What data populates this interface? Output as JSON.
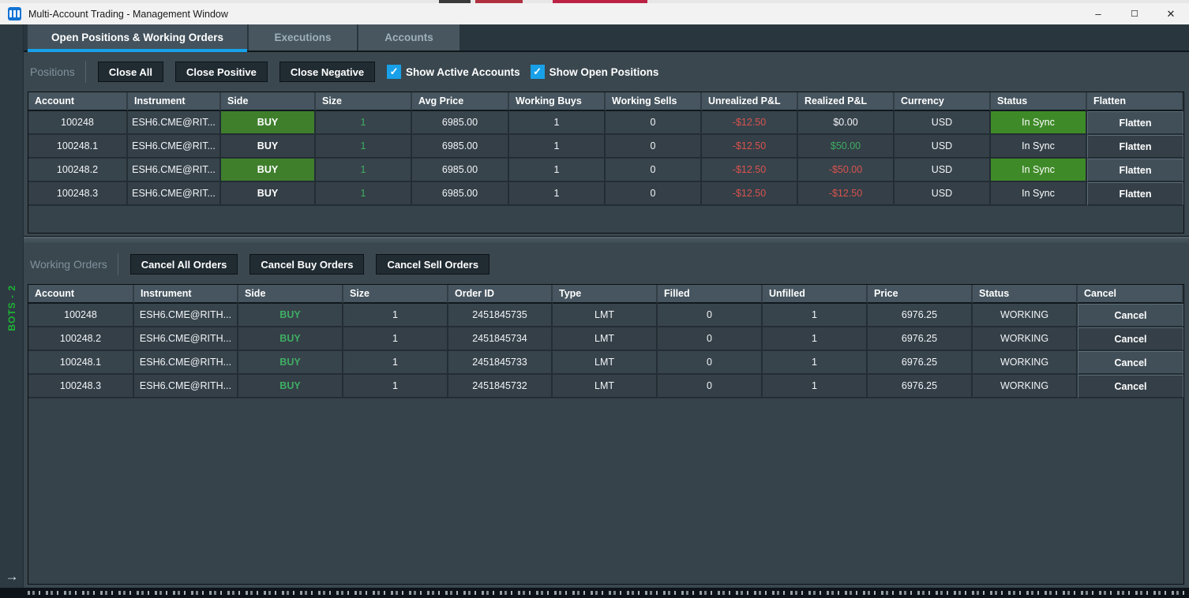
{
  "window": {
    "title": "Multi-Account Trading - Management Window",
    "controls": {
      "minimize": "–",
      "maximize": "☐",
      "close": "✕"
    }
  },
  "tabs": [
    {
      "label": "Open Positions & Working Orders",
      "active": true
    },
    {
      "label": "Executions",
      "active": false
    },
    {
      "label": "Accounts",
      "active": false
    }
  ],
  "positions": {
    "section_label": "Positions",
    "buttons": {
      "close_all": "Close All",
      "close_positive": "Close Positive",
      "close_negative": "Close Negative"
    },
    "checkboxes": [
      {
        "label": "Show Active Accounts",
        "checked": true
      },
      {
        "label": "Show Open Positions",
        "checked": true
      }
    ],
    "columns": [
      "Account",
      "Instrument",
      "Side",
      "Size",
      "Avg Price",
      "Working Buys",
      "Working Sells",
      "Unrealized P&L",
      "Realized P&L",
      "Currency",
      "Status",
      "Flatten"
    ],
    "rows": [
      {
        "account": "100248",
        "instrument": "ESH6.CME@RIT...",
        "side": "BUY",
        "size": "1",
        "avg_price": "6985.00",
        "working_buys": "1",
        "working_sells": "0",
        "unrealized_pl": "-$12.50",
        "realized_pl": "$0.00",
        "currency": "USD",
        "status": "In Sync",
        "flatten_label": "Flatten"
      },
      {
        "account": "100248.1",
        "instrument": "ESH6.CME@RIT...",
        "side": "BUY",
        "size": "1",
        "avg_price": "6985.00",
        "working_buys": "1",
        "working_sells": "0",
        "unrealized_pl": "-$12.50",
        "realized_pl": "$50.00",
        "currency": "USD",
        "status": "In Sync",
        "flatten_label": "Flatten"
      },
      {
        "account": "100248.2",
        "instrument": "ESH6.CME@RIT...",
        "side": "BUY",
        "size": "1",
        "avg_price": "6985.00",
        "working_buys": "1",
        "working_sells": "0",
        "unrealized_pl": "-$12.50",
        "realized_pl": "-$50.00",
        "currency": "USD",
        "status": "In Sync",
        "flatten_label": "Flatten"
      },
      {
        "account": "100248.3",
        "instrument": "ESH6.CME@RIT...",
        "side": "BUY",
        "size": "1",
        "avg_price": "6985.00",
        "working_buys": "1",
        "working_sells": "0",
        "unrealized_pl": "-$12.50",
        "realized_pl": "-$12.50",
        "currency": "USD",
        "status": "In Sync",
        "flatten_label": "Flatten"
      }
    ]
  },
  "working_orders": {
    "section_label": "Working Orders",
    "buttons": {
      "cancel_all": "Cancel All Orders",
      "cancel_buy": "Cancel Buy Orders",
      "cancel_sell": "Cancel Sell Orders"
    },
    "columns": [
      "Account",
      "Instrument",
      "Side",
      "Size",
      "Order ID",
      "Type",
      "Filled",
      "Unfilled",
      "Price",
      "Status",
      "Cancel"
    ],
    "rows": [
      {
        "account": "100248",
        "instrument": "ESH6.CME@RITH...",
        "side": "BUY",
        "size": "1",
        "order_id": "2451845735",
        "type": "LMT",
        "filled": "0",
        "unfilled": "1",
        "price": "6976.25",
        "status": "WORKING",
        "cancel_label": "Cancel"
      },
      {
        "account": "100248.2",
        "instrument": "ESH6.CME@RITH...",
        "side": "BUY",
        "size": "1",
        "order_id": "2451845734",
        "type": "LMT",
        "filled": "0",
        "unfilled": "1",
        "price": "6976.25",
        "status": "WORKING",
        "cancel_label": "Cancel"
      },
      {
        "account": "100248.1",
        "instrument": "ESH6.CME@RITH...",
        "side": "BUY",
        "size": "1",
        "order_id": "2451845733",
        "type": "LMT",
        "filled": "0",
        "unfilled": "1",
        "price": "6976.25",
        "status": "WORKING",
        "cancel_label": "Cancel"
      },
      {
        "account": "100248.3",
        "instrument": "ESH6.CME@RITH...",
        "side": "BUY",
        "size": "1",
        "order_id": "2451845732",
        "type": "LMT",
        "filled": "0",
        "unfilled": "1",
        "price": "6976.25",
        "status": "WORKING",
        "cancel_label": "Cancel"
      }
    ]
  },
  "side_rail": {
    "label": "BOTS - 2",
    "arrow": "→"
  },
  "colors": {
    "accent_blue": "#18a0e8",
    "buy_green": "#3f7f2c",
    "in_sync_green": "#3f8a28",
    "positive_green": "#3fae63",
    "negative_red": "#d9534f",
    "rail_green": "#1fb335"
  }
}
